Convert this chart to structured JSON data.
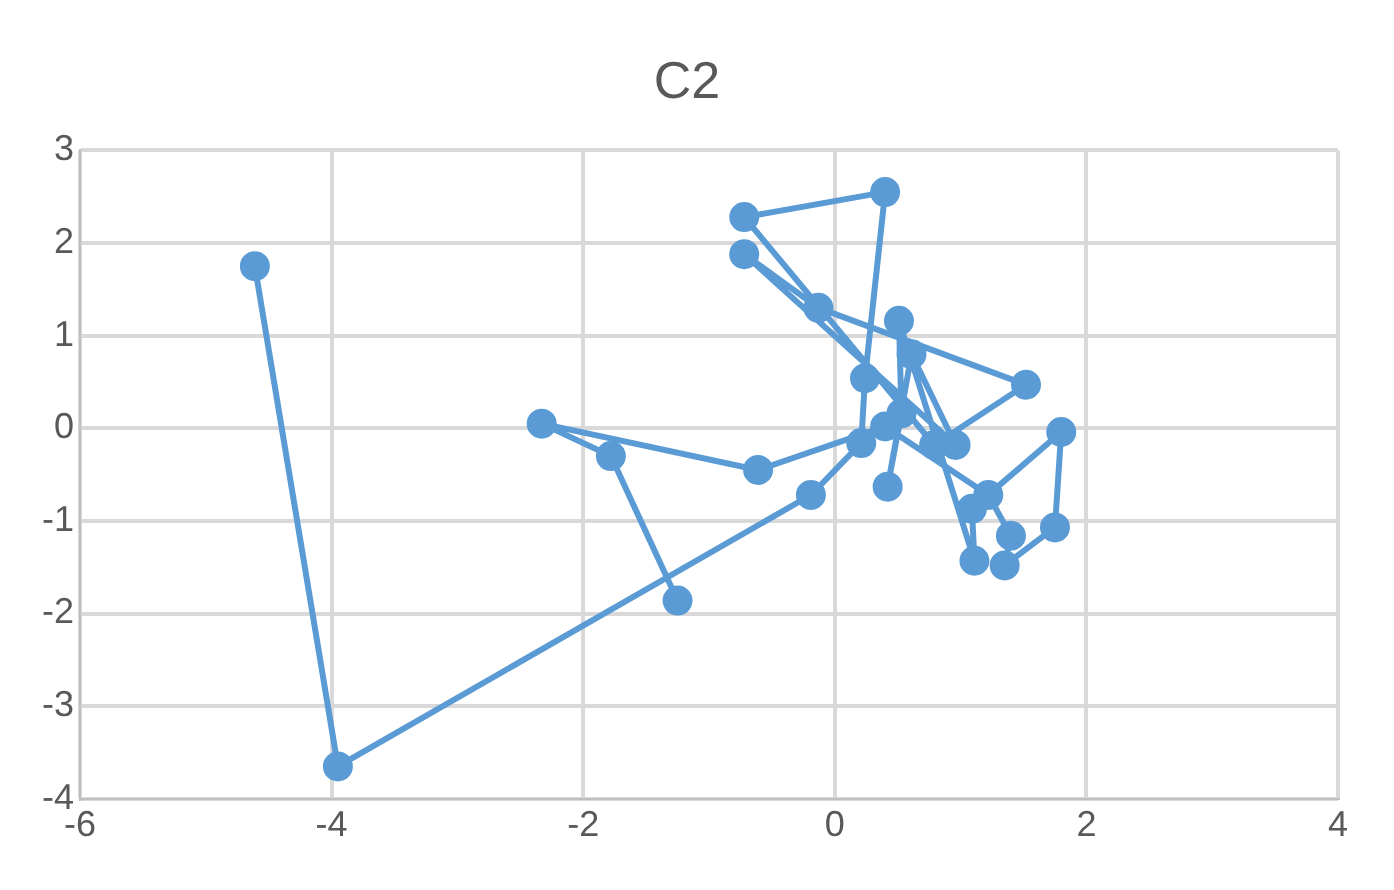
{
  "chart_data": {
    "type": "line",
    "title": "C2",
    "x": [
      -4.61,
      -3.95,
      -0.19,
      0.21,
      0.24,
      0.4,
      -0.72,
      0.79,
      1.52,
      -0.13,
      -0.72,
      0.96,
      0.61,
      0.42,
      0.53,
      0.51,
      1.11,
      1.09,
      1.8,
      1.75,
      1.35,
      1.4,
      1.22,
      0.4,
      -0.61,
      -2.33,
      -1.78,
      -1.25
    ],
    "series": [
      {
        "color": "#5b9bd5",
        "values": [
          1.75,
          -3.65,
          -0.72,
          -0.16,
          0.54,
          2.55,
          2.28,
          -0.18,
          0.47,
          1.3,
          1.88,
          -0.18,
          0.8,
          -0.63,
          0.16,
          1.16,
          -1.43,
          -0.87,
          -0.04,
          -1.07,
          -1.48,
          -1.16,
          -0.72,
          0.02,
          -0.45,
          0.05,
          -0.3,
          -1.86
        ]
      }
    ],
    "xlim": [
      -6,
      4
    ],
    "xticks": [
      -6,
      -4,
      -2,
      0,
      2,
      4
    ],
    "ylim": [
      -4,
      3
    ],
    "yticks": [
      -4,
      -3,
      -2,
      -1,
      0,
      1,
      2,
      3
    ],
    "grid": true,
    "legend": false,
    "marker": "circle",
    "line_style": "solid"
  }
}
